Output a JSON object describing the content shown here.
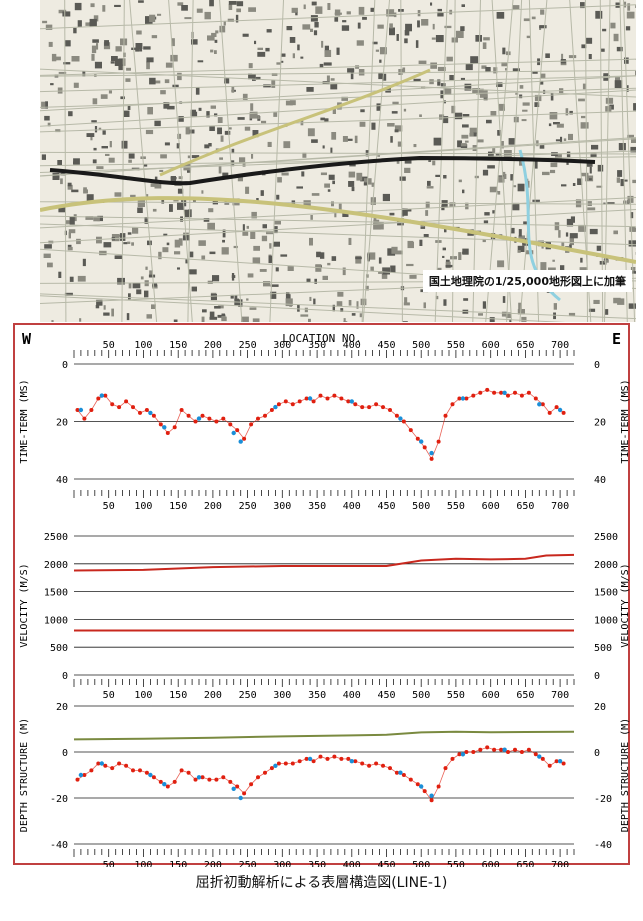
{
  "map": {
    "caption": "国土地理院の1/25,000地形図上に加筆"
  },
  "figure_caption": "屈折初動解析による表層構造図(LINE-1)",
  "colors": {
    "observed": "#e02010",
    "computed": "#1a8fd8",
    "axis": "#1a1a1a",
    "layer2_velocity": "#c8281e",
    "elevation": "#7a8a40"
  },
  "chart_data": [
    {
      "type": "scatter",
      "name_left": "W",
      "name_right": "E",
      "xlabel": "LOCATION NO.",
      "ylabel": "TIME-TERM (MS)",
      "x_ticks": [
        50,
        100,
        150,
        200,
        250,
        300,
        350,
        400,
        450,
        500,
        550,
        600,
        650,
        700
      ],
      "y_ticks": [
        0,
        20,
        40
      ],
      "xlim": [
        0,
        720
      ],
      "ylim": [
        40,
        0
      ],
      "series": [
        {
          "style": "observed",
          "values": [
            [
              5,
              16
            ],
            [
              15,
              19
            ],
            [
              25,
              16
            ],
            [
              35,
              12
            ],
            [
              45,
              11
            ],
            [
              55,
              14
            ],
            [
              65,
              15
            ],
            [
              75,
              13
            ],
            [
              85,
              15
            ],
            [
              95,
              17
            ],
            [
              105,
              16
            ],
            [
              115,
              18
            ],
            [
              125,
              21
            ],
            [
              135,
              24
            ],
            [
              145,
              22
            ],
            [
              155,
              16
            ],
            [
              165,
              18
            ],
            [
              175,
              20
            ],
            [
              185,
              18
            ],
            [
              195,
              19
            ],
            [
              205,
              20
            ],
            [
              215,
              19
            ],
            [
              225,
              21
            ],
            [
              235,
              23
            ],
            [
              245,
              26
            ],
            [
              255,
              21
            ],
            [
              265,
              19
            ],
            [
              275,
              18
            ],
            [
              285,
              16
            ],
            [
              295,
              14
            ],
            [
              305,
              13
            ],
            [
              315,
              14
            ],
            [
              325,
              13
            ],
            [
              335,
              12
            ],
            [
              345,
              13
            ],
            [
              355,
              11
            ],
            [
              365,
              12
            ],
            [
              375,
              11
            ],
            [
              385,
              12
            ],
            [
              395,
              13
            ],
            [
              405,
              14
            ],
            [
              415,
              15
            ],
            [
              425,
              15
            ],
            [
              435,
              14
            ],
            [
              445,
              15
            ],
            [
              455,
              16
            ],
            [
              465,
              18
            ],
            [
              475,
              20
            ],
            [
              485,
              23
            ],
            [
              495,
              26
            ],
            [
              505,
              29
            ],
            [
              515,
              33
            ],
            [
              525,
              27
            ],
            [
              535,
              18
            ],
            [
              545,
              14
            ],
            [
              555,
              12
            ],
            [
              565,
              12
            ],
            [
              575,
              11
            ],
            [
              585,
              10
            ],
            [
              595,
              9
            ],
            [
              605,
              10
            ],
            [
              615,
              10
            ],
            [
              625,
              11
            ],
            [
              635,
              10
            ],
            [
              645,
              11
            ],
            [
              655,
              10
            ],
            [
              665,
              12
            ],
            [
              675,
              14
            ],
            [
              685,
              17
            ],
            [
              695,
              15
            ],
            [
              705,
              17
            ]
          ]
        },
        {
          "style": "computed",
          "values": [
            [
              10,
              16
            ],
            [
              40,
              11
            ],
            [
              110,
              17
            ],
            [
              130,
              22
            ],
            [
              180,
              19
            ],
            [
              230,
              24
            ],
            [
              240,
              27
            ],
            [
              290,
              15
            ],
            [
              340,
              12
            ],
            [
              400,
              13
            ],
            [
              470,
              19
            ],
            [
              500,
              27
            ],
            [
              515,
              31
            ],
            [
              560,
              12
            ],
            [
              620,
              10
            ],
            [
              670,
              14
            ],
            [
              700,
              16
            ]
          ]
        }
      ]
    },
    {
      "type": "line",
      "ylabel": "VELOCITY (M/S)",
      "x_ticks": [
        50,
        100,
        150,
        200,
        250,
        300,
        350,
        400,
        450,
        500,
        550,
        600,
        650,
        700
      ],
      "y_ticks": [
        0,
        500,
        1000,
        1500,
        2000,
        2500
      ],
      "xlim": [
        0,
        720
      ],
      "ylim": [
        0,
        2500
      ],
      "series": [
        {
          "style": "layer2_velocity",
          "x": [
            0,
            100,
            200,
            300,
            400,
            450,
            500,
            550,
            600,
            650,
            680,
            720
          ],
          "values": [
            1880,
            1890,
            1940,
            1960,
            1960,
            1960,
            2060,
            2090,
            2080,
            2090,
            2150,
            2160
          ]
        },
        {
          "style": "layer2_velocity",
          "x": [
            0,
            720
          ],
          "values": [
            800,
            800
          ]
        }
      ]
    },
    {
      "type": "scatter",
      "ylabel": "DEPTH STRUCTURE (M)",
      "x_ticks": [
        50,
        100,
        150,
        200,
        250,
        300,
        350,
        400,
        450,
        500,
        550,
        600,
        650,
        700
      ],
      "y_ticks": [
        20,
        0,
        -20,
        -40
      ],
      "xlim": [
        0,
        720
      ],
      "ylim": [
        -40,
        20
      ],
      "series": [
        {
          "style": "elevation",
          "x": [
            0,
            100,
            200,
            300,
            400,
            450,
            500,
            550,
            600,
            650,
            720
          ],
          "values": [
            5.5,
            5.8,
            6.2,
            6.8,
            7.2,
            7.5,
            8.5,
            8.8,
            8.6,
            8.7,
            8.8
          ]
        },
        {
          "style": "observed",
          "values": [
            [
              5,
              -12
            ],
            [
              15,
              -10
            ],
            [
              25,
              -8
            ],
            [
              35,
              -5
            ],
            [
              45,
              -6
            ],
            [
              55,
              -7
            ],
            [
              65,
              -5
            ],
            [
              75,
              -6
            ],
            [
              85,
              -8
            ],
            [
              95,
              -8
            ],
            [
              105,
              -9
            ],
            [
              115,
              -11
            ],
            [
              125,
              -13
            ],
            [
              135,
              -15
            ],
            [
              145,
              -13
            ],
            [
              155,
              -8
            ],
            [
              165,
              -9
            ],
            [
              175,
              -12
            ],
            [
              185,
              -11
            ],
            [
              195,
              -12
            ],
            [
              205,
              -12
            ],
            [
              215,
              -11
            ],
            [
              225,
              -13
            ],
            [
              235,
              -15
            ],
            [
              245,
              -18
            ],
            [
              255,
              -14
            ],
            [
              265,
              -11
            ],
            [
              275,
              -9
            ],
            [
              285,
              -7
            ],
            [
              295,
              -5
            ],
            [
              305,
              -5
            ],
            [
              315,
              -5
            ],
            [
              325,
              -4
            ],
            [
              335,
              -3
            ],
            [
              345,
              -4
            ],
            [
              355,
              -2
            ],
            [
              365,
              -3
            ],
            [
              375,
              -2
            ],
            [
              385,
              -3
            ],
            [
              395,
              -3
            ],
            [
              405,
              -4
            ],
            [
              415,
              -5
            ],
            [
              425,
              -6
            ],
            [
              435,
              -5
            ],
            [
              445,
              -6
            ],
            [
              455,
              -7
            ],
            [
              465,
              -9
            ],
            [
              475,
              -10
            ],
            [
              485,
              -12
            ],
            [
              495,
              -14
            ],
            [
              505,
              -17
            ],
            [
              515,
              -21
            ],
            [
              525,
              -15
            ],
            [
              535,
              -7
            ],
            [
              545,
              -3
            ],
            [
              555,
              -1
            ],
            [
              565,
              0
            ],
            [
              575,
              0
            ],
            [
              585,
              1
            ],
            [
              595,
              2
            ],
            [
              605,
              1
            ],
            [
              615,
              1
            ],
            [
              625,
              0
            ],
            [
              635,
              1
            ],
            [
              645,
              0
            ],
            [
              655,
              1
            ],
            [
              665,
              -1
            ],
            [
              675,
              -3
            ],
            [
              685,
              -6
            ],
            [
              695,
              -4
            ],
            [
              705,
              -5
            ]
          ]
        },
        {
          "style": "computed",
          "values": [
            [
              10,
              -10
            ],
            [
              40,
              -5
            ],
            [
              110,
              -10
            ],
            [
              130,
              -14
            ],
            [
              180,
              -11
            ],
            [
              230,
              -16
            ],
            [
              240,
              -20
            ],
            [
              290,
              -6
            ],
            [
              340,
              -3
            ],
            [
              400,
              -4
            ],
            [
              470,
              -9
            ],
            [
              500,
              -15
            ],
            [
              515,
              -19
            ],
            [
              560,
              -1
            ],
            [
              620,
              1
            ],
            [
              670,
              -2
            ],
            [
              700,
              -4
            ]
          ]
        }
      ]
    }
  ]
}
